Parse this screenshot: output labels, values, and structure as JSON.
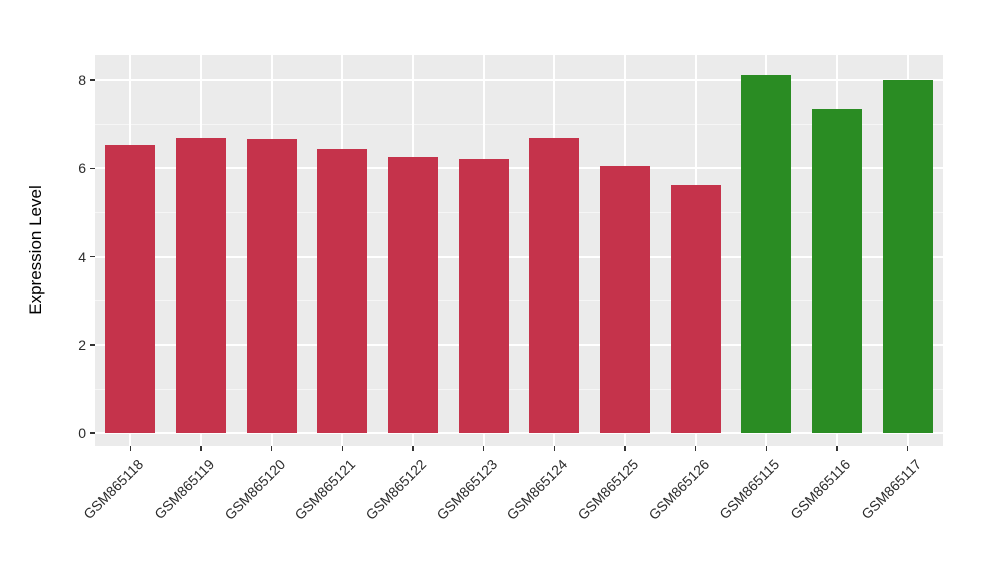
{
  "figure": {
    "background_color": "#FFFFFF",
    "panel_background_color": "#EBEBEB",
    "grid_color": "#FFFFFF",
    "axis_text_color": "#2B2B2B",
    "tick_mark_color": "#333333"
  },
  "chart_data": {
    "type": "bar",
    "title": "",
    "xlabel": "",
    "ylabel": "Expression Level",
    "categories": [
      "GSM865118",
      "GSM865119",
      "GSM865120",
      "GSM865121",
      "GSM865122",
      "GSM865123",
      "GSM865124",
      "GSM865125",
      "GSM865126",
      "GSM865115",
      "GSM865116",
      "GSM865117"
    ],
    "values": [
      6.53,
      6.68,
      6.66,
      6.44,
      6.27,
      6.22,
      6.68,
      6.06,
      5.63,
      8.11,
      7.34,
      8.01
    ],
    "groups": [
      "red",
      "red",
      "red",
      "red",
      "red",
      "red",
      "red",
      "red",
      "red",
      "green",
      "green",
      "green"
    ],
    "group_colors": {
      "red": "#C5334B",
      "green": "#2A8C23"
    },
    "yticks": [
      0,
      2,
      4,
      6,
      8
    ],
    "ytick_labels": [
      "0",
      "2",
      "4",
      "6",
      "8"
    ],
    "yticks_minor": [
      1,
      3,
      5,
      7
    ],
    "ylim": [
      -0.29,
      8.57
    ],
    "grid": "major-and-minor",
    "legend": false,
    "x_tick_rotation_deg": 45
  }
}
